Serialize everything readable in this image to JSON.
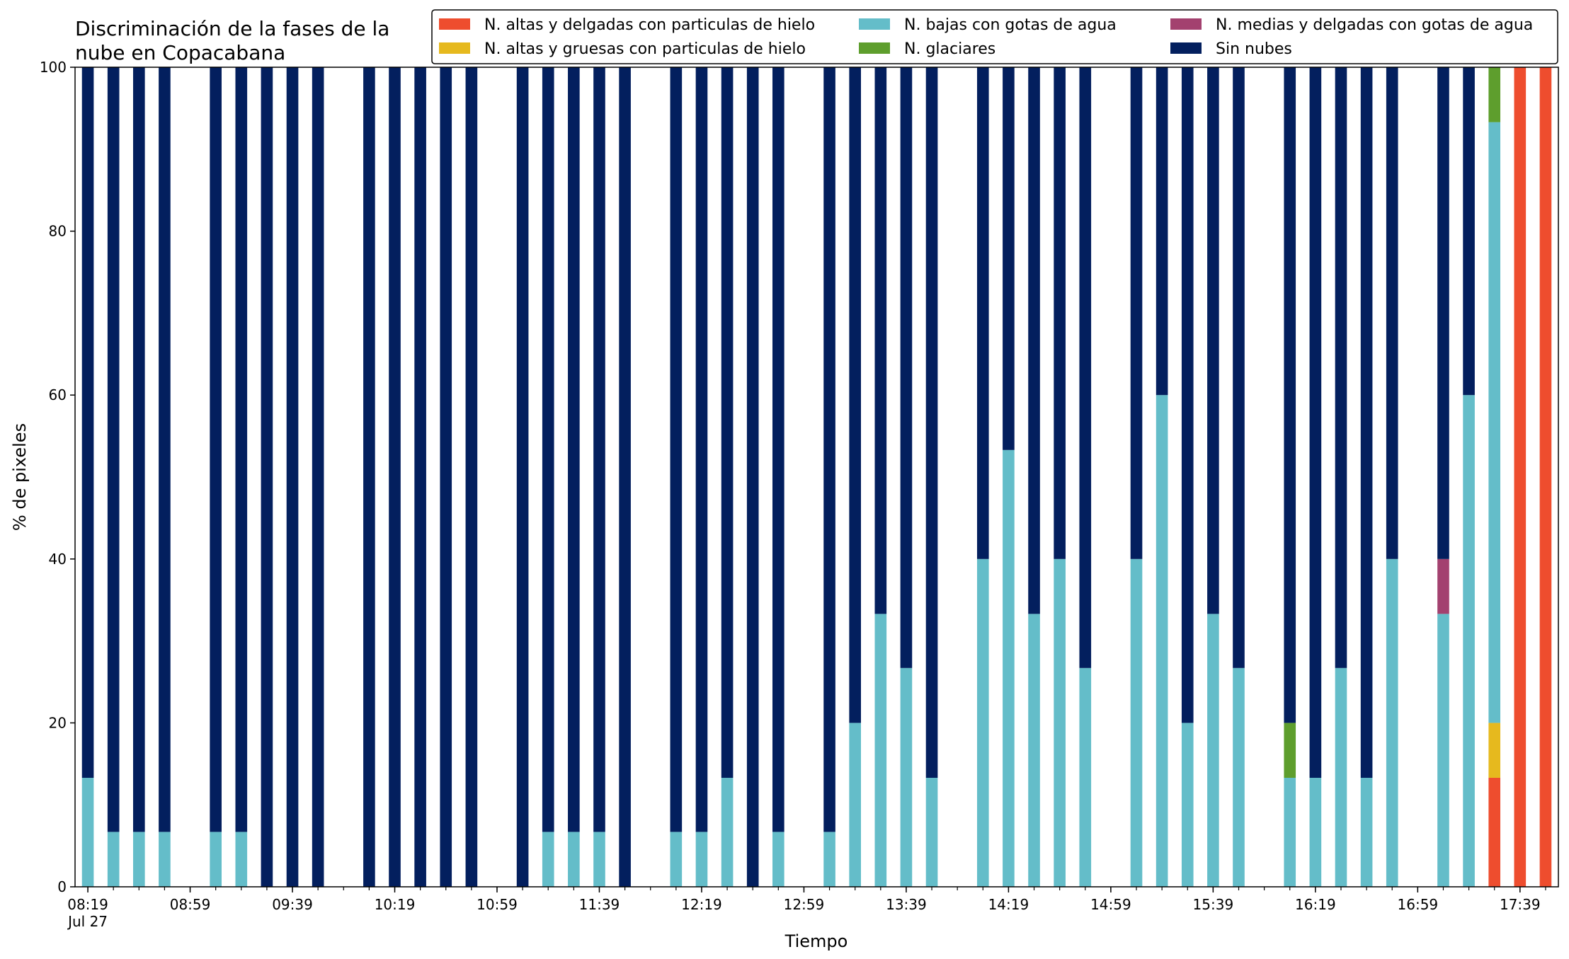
{
  "chart_data": {
    "type": "bar",
    "stacked": true,
    "title": "Discriminación de la fases de la nube en Copacabana",
    "title_lines": [
      "Discriminación de la fases de la",
      "nube en Copacabana"
    ],
    "xlabel": "Tiempo",
    "ylabel": "% de pixeles",
    "ylim": [
      0,
      100
    ],
    "yticks": [
      0,
      20,
      40,
      60,
      80,
      100
    ],
    "grid": false,
    "legend_position": "top-right",
    "xlim": [
      "08:14",
      "17:54"
    ],
    "xticks": [
      "08:19",
      "08:59",
      "09:39",
      "10:19",
      "10:59",
      "11:39",
      "12:19",
      "12:59",
      "13:39",
      "14:19",
      "14:59",
      "15:39",
      "16:19",
      "16:59",
      "17:39"
    ],
    "xtick_sublabel": "Jul 27",
    "bar_width_minutes": 4.6,
    "x": [
      "08:19",
      "08:29",
      "08:39",
      "08:49",
      "09:09",
      "09:19",
      "09:29",
      "09:39",
      "09:49",
      "10:09",
      "10:19",
      "10:29",
      "10:39",
      "10:49",
      "11:09",
      "11:19",
      "11:29",
      "11:39",
      "11:49",
      "12:09",
      "12:19",
      "12:29",
      "12:39",
      "12:49",
      "13:09",
      "13:19",
      "13:29",
      "13:39",
      "13:49",
      "14:09",
      "14:19",
      "14:29",
      "14:39",
      "14:49",
      "15:09",
      "15:19",
      "15:29",
      "15:39",
      "15:49",
      "16:09",
      "16:19",
      "16:29",
      "16:39",
      "16:49",
      "17:09",
      "17:19",
      "17:29",
      "17:39",
      "17:49"
    ],
    "series": [
      {
        "name": "N. altas y delgadas con particulas de hielo",
        "color": "#ee4d2e",
        "values": [
          0,
          0,
          0,
          0,
          0,
          0,
          0,
          0,
          0,
          0,
          0,
          0,
          0,
          0,
          0,
          0,
          0,
          0,
          0,
          0,
          0,
          0,
          0,
          0,
          0,
          0,
          0,
          0,
          0,
          0,
          0,
          0,
          0,
          0,
          0,
          0,
          0,
          0,
          0,
          0,
          0,
          0,
          0,
          0,
          0,
          0,
          13.3,
          100,
          100
        ]
      },
      {
        "name": "N. altas y gruesas con particulas de hielo",
        "color": "#e6b91e",
        "values": [
          0,
          0,
          0,
          0,
          0,
          0,
          0,
          0,
          0,
          0,
          0,
          0,
          0,
          0,
          0,
          0,
          0,
          0,
          0,
          0,
          0,
          0,
          0,
          0,
          0,
          0,
          0,
          0,
          0,
          0,
          0,
          0,
          0,
          0,
          0,
          0,
          0,
          0,
          0,
          0,
          0,
          0,
          0,
          0,
          0,
          0,
          6.7,
          0,
          0
        ]
      },
      {
        "name": "N. bajas con gotas de agua",
        "color": "#64bdc9",
        "values": [
          13.3,
          6.7,
          6.7,
          6.7,
          6.7,
          6.7,
          0,
          0,
          0,
          0,
          0,
          0,
          0,
          0,
          0,
          6.7,
          6.7,
          6.7,
          0,
          6.7,
          6.7,
          13.3,
          0,
          6.7,
          6.7,
          20,
          33.3,
          26.7,
          13.3,
          40,
          53.3,
          33.3,
          40,
          26.7,
          40,
          60,
          20,
          33.3,
          26.7,
          13.3,
          13.3,
          26.7,
          13.3,
          40,
          33.3,
          60,
          73.3,
          0,
          0
        ]
      },
      {
        "name": "N. glaciares",
        "color": "#5e9e2d",
        "values": [
          0,
          0,
          0,
          0,
          0,
          0,
          0,
          0,
          0,
          0,
          0,
          0,
          0,
          0,
          0,
          0,
          0,
          0,
          0,
          0,
          0,
          0,
          0,
          0,
          0,
          0,
          0,
          0,
          0,
          0,
          0,
          0,
          0,
          0,
          0,
          0,
          0,
          0,
          0,
          6.7,
          0,
          0,
          0,
          0,
          0,
          0,
          6.7,
          0,
          0
        ]
      },
      {
        "name": "N. medias y delgadas con gotas de agua",
        "color": "#a3416f",
        "values": [
          0,
          0,
          0,
          0,
          0,
          0,
          0,
          0,
          0,
          0,
          0,
          0,
          0,
          0,
          0,
          0,
          0,
          0,
          0,
          0,
          0,
          0,
          0,
          0,
          0,
          0,
          0,
          0,
          0,
          0,
          0,
          0,
          0,
          0,
          0,
          0,
          0,
          0,
          0,
          0,
          0,
          0,
          0,
          0,
          6.7,
          0,
          0,
          0,
          0
        ]
      },
      {
        "name": "Sin nubes",
        "color": "#031f5e",
        "values": [
          86.7,
          93.3,
          93.3,
          93.3,
          93.3,
          93.3,
          100,
          100,
          100,
          100,
          100,
          100,
          100,
          100,
          100,
          93.3,
          93.3,
          93.3,
          100,
          93.3,
          93.3,
          86.7,
          100,
          93.3,
          93.3,
          80,
          66.7,
          73.3,
          86.7,
          60,
          46.7,
          66.7,
          60,
          73.3,
          60,
          40,
          80,
          66.7,
          73.3,
          80,
          86.7,
          73.3,
          86.7,
          60,
          60,
          40,
          0,
          0,
          0
        ]
      }
    ]
  }
}
